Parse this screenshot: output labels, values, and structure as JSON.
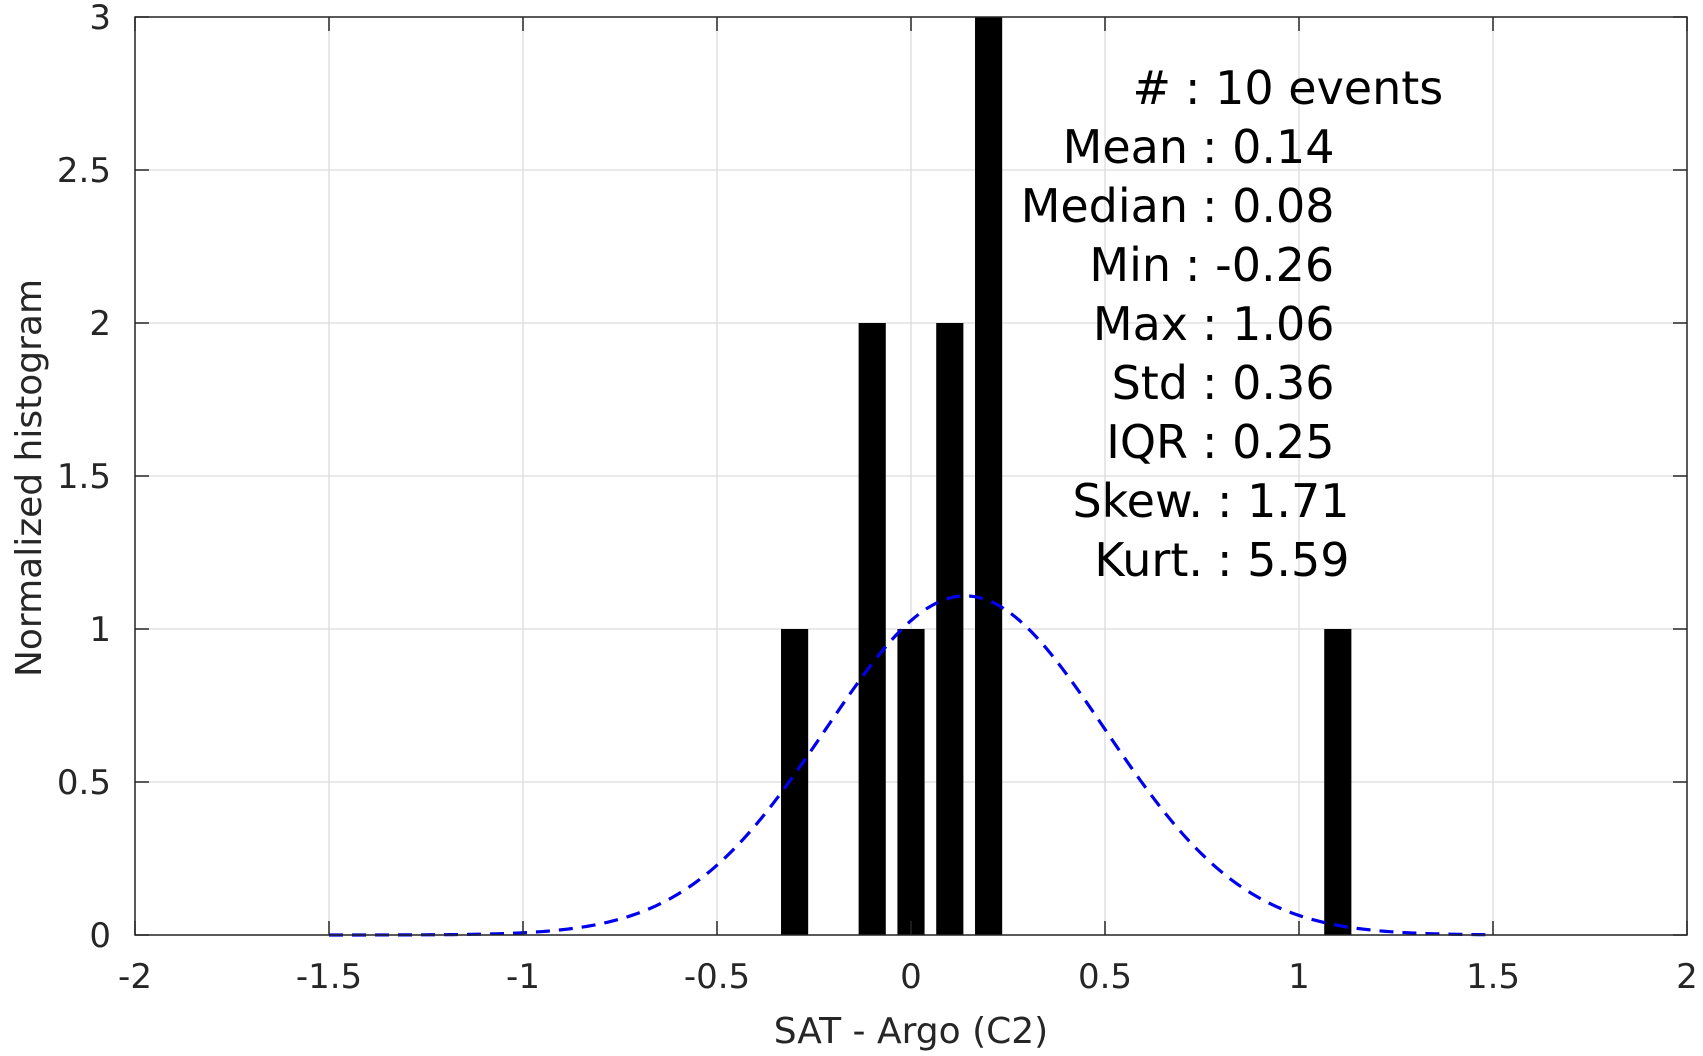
{
  "chart_data": {
    "type": "bar",
    "xlabel": "SAT - Argo (C2)",
    "ylabel": "Normalized histogram",
    "xlim": [
      -2,
      2
    ],
    "ylim": [
      0,
      3
    ],
    "x_ticks": [
      -2,
      -1.5,
      -1,
      -0.5,
      0,
      0.5,
      1,
      1.5,
      2
    ],
    "y_ticks": [
      0,
      0.5,
      1,
      1.5,
      2,
      2.5,
      3
    ],
    "x_tick_labels": [
      "-2",
      "-1.5",
      "-1",
      "-0.5",
      "0",
      "0.5",
      "1",
      "1.5",
      "2"
    ],
    "y_tick_labels": [
      "0",
      "0.5",
      "1",
      "1.5",
      "2",
      "2.5",
      "3"
    ],
    "grid": true,
    "bar_color": "#000000",
    "bar_width": 0.07,
    "bars": [
      {
        "x": -0.3,
        "value": 1
      },
      {
        "x": -0.1,
        "value": 2
      },
      {
        "x": 0.0,
        "value": 1
      },
      {
        "x": 0.1,
        "value": 2
      },
      {
        "x": 0.2,
        "value": 3
      },
      {
        "x": 1.1,
        "value": 1
      }
    ],
    "fit_curve": {
      "style": "dashed",
      "color": "#0000ee",
      "distribution": "normal",
      "mean": 0.14,
      "std": 0.36,
      "x_range": [
        -1.5,
        1.5
      ]
    },
    "annotation": [
      {
        "label": "#",
        "value": ": 10 events"
      },
      {
        "label": "Mean",
        "value": ": 0.14"
      },
      {
        "label": "Median",
        "value": ": 0.08"
      },
      {
        "label": "Min",
        "value": ": -0.26"
      },
      {
        "label": "Max",
        "value": ": 1.06"
      },
      {
        "label": "Std",
        "value": ": 0.36"
      },
      {
        "label": "IQR",
        "value": ": 0.25"
      },
      {
        "label": "Skew.",
        "value": ": 1.71"
      },
      {
        "label": "Kurt.",
        "value": ": 5.59"
      }
    ]
  }
}
